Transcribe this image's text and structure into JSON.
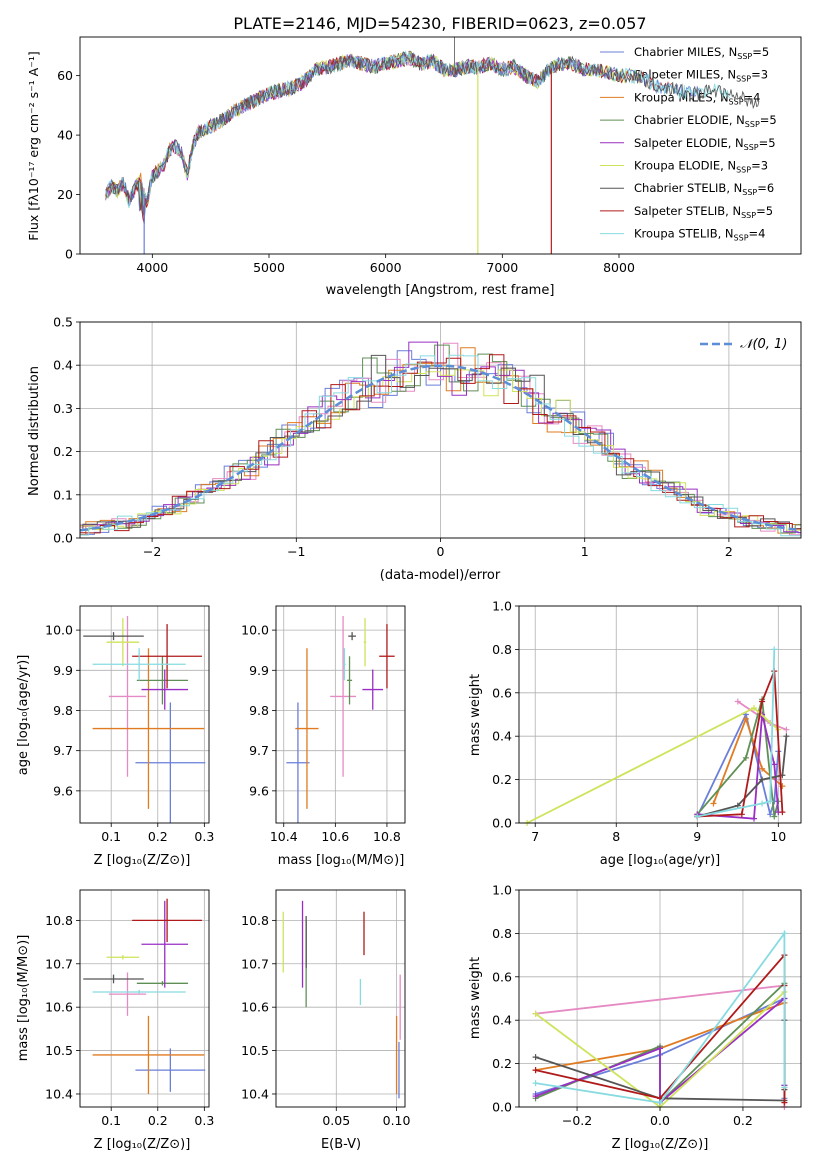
{
  "title": "PLATE=2146, MJD=54230, FIBERID=0623, z=0.057",
  "colors": {
    "s1": "#6a7fd9",
    "s2": "#e68ac4",
    "s3": "#e07b22",
    "s4": "#5f8f55",
    "s5": "#9a2ec4",
    "s6": "#cfe35a",
    "s7": "#555555",
    "s8": "#b01a1a",
    "s9": "#86dbe0",
    "normal": "#5b8ed6"
  },
  "legend": [
    {
      "label": "Chabrier MILES, N",
      "sub": "SSP",
      "eq": "=5",
      "color_key": "s1"
    },
    {
      "label": "Salpeter MILES, N",
      "sub": "SSP",
      "eq": "=3",
      "color_key": "s2"
    },
    {
      "label": "Kroupa MILES, N",
      "sub": "SSP",
      "eq": "=4",
      "color_key": "s3"
    },
    {
      "label": "Chabrier ELODIE, N",
      "sub": "SSP",
      "eq": "=5",
      "color_key": "s4"
    },
    {
      "label": "Salpeter ELODIE, N",
      "sub": "SSP",
      "eq": "=5",
      "color_key": "s5"
    },
    {
      "label": "Kroupa ELODIE, N",
      "sub": "SSP",
      "eq": "=3",
      "color_key": "s6"
    },
    {
      "label": "Chabrier STELIB, N",
      "sub": "SSP",
      "eq": "=6",
      "color_key": "s7"
    },
    {
      "label": "Salpeter STELIB, N",
      "sub": "SSP",
      "eq": "=5",
      "color_key": "s8"
    },
    {
      "label": "Kroupa STELIB, N",
      "sub": "SSP",
      "eq": "=4",
      "color_key": "s9"
    }
  ],
  "chart_data": [
    {
      "id": "spectrum",
      "type": "line",
      "xlabel": "wavelength [Angstrom, rest frame]",
      "ylabel": "Flux [fλ10⁻¹⁷ erg cm⁻² s⁻¹ A⁻¹]",
      "xlim": [
        3380,
        9560
      ],
      "ylim": [
        0,
        73
      ],
      "xticks": [
        4000,
        5000,
        6000,
        7000,
        8000
      ],
      "yticks": [
        0,
        20,
        40,
        60
      ],
      "xticklabels": [
        "4000",
        "5000",
        "6000",
        "7000",
        "8000"
      ],
      "yticklabels": [
        "0",
        "20",
        "40",
        "60"
      ],
      "x": [
        3600,
        3650,
        3700,
        3750,
        3800,
        3850,
        3900,
        3950,
        4000,
        4050,
        4100,
        4150,
        4200,
        4250,
        4300,
        4350,
        4400,
        4500,
        4600,
        4700,
        4800,
        4900,
        5000,
        5100,
        5200,
        5300,
        5400,
        5500,
        5600,
        5700,
        5800,
        5900,
        6000,
        6100,
        6200,
        6300,
        6400,
        6500,
        6600,
        6700,
        6800,
        6900,
        7000,
        7100,
        7200,
        7300,
        7400,
        7500,
        7600,
        7700,
        7800,
        7900,
        8000,
        8100,
        8200,
        8300,
        8400,
        8500,
        8600,
        8700,
        8800,
        8900,
        9000,
        9100,
        9200,
        9300,
        9400,
        9500
      ],
      "y": [
        20,
        23,
        21,
        24,
        18,
        22,
        25,
        17,
        26,
        28,
        30,
        35,
        36,
        34,
        27,
        37,
        41,
        43,
        45,
        48,
        50,
        52,
        54,
        55,
        56,
        58,
        62,
        63,
        64,
        65,
        64,
        63,
        64,
        65,
        66,
        64,
        65,
        62,
        62,
        63,
        63,
        64,
        62,
        63,
        60,
        58,
        62,
        64,
        64,
        62,
        62,
        61,
        60,
        60,
        59,
        57,
        56,
        55,
        54,
        54,
        55,
        54,
        53,
        52,
        51,
        51,
        50,
        50
      ],
      "dips": [
        {
          "x": 3930,
          "label": "Chabrier MILES"
        },
        {
          "x": 6790,
          "label": "Kroupa ELODIE"
        },
        {
          "x": 7420,
          "label": "Salpeter STELIB"
        }
      ]
    },
    {
      "id": "residuals",
      "type": "histogram",
      "xlabel": "(data-model)/error",
      "ylabel": "Normed distribution",
      "xlim": [
        -2.5,
        2.5
      ],
      "ylim": [
        0,
        0.5
      ],
      "xticks": [
        -2,
        -1,
        0,
        1,
        2
      ],
      "yticks": [
        0,
        0.1,
        0.2,
        0.3,
        0.4,
        0.5
      ],
      "xticklabels": [
        "−2",
        "−1",
        "0",
        "1",
        "2"
      ],
      "yticklabels": [
        "0.0",
        "0.1",
        "0.2",
        "0.3",
        "0.4",
        "0.5"
      ],
      "bin_width": 0.1,
      "normal_label": "𝒩(0, 1)"
    },
    {
      "id": "age_vs_Z",
      "type": "errorbar",
      "xlabel": "Z [log₁₀(Z/Z⊙)]",
      "ylabel": "age  [log₁₀(age/yr)]",
      "xlim": [
        0.033,
        0.31
      ],
      "ylim": [
        9.52,
        10.06
      ],
      "xticks": [
        0.1,
        0.2,
        0.3
      ],
      "yticks": [
        9.6,
        9.7,
        9.8,
        9.9,
        10.0
      ],
      "xticklabels": [
        "0.1",
        "0.2",
        "0.3"
      ],
      "yticklabels": [
        "9.6",
        "9.7",
        "9.8",
        "9.9",
        "10.0"
      ],
      "points": [
        {
          "s": "s1",
          "x": 0.227,
          "xerr": 0.075,
          "y": 9.67,
          "yerr": 0.15
        },
        {
          "s": "s2",
          "x": 0.135,
          "xerr": 0.04,
          "y": 9.835,
          "yerr": 0.2
        },
        {
          "s": "s3",
          "x": 0.18,
          "xerr": 0.12,
          "y": 9.755,
          "yerr": 0.2
        },
        {
          "s": "s4",
          "x": 0.21,
          "xerr": 0.055,
          "y": 9.875,
          "yerr": 0.06
        },
        {
          "s": "s5",
          "x": 0.215,
          "xerr": 0.05,
          "y": 9.852,
          "yerr": 0.05
        },
        {
          "s": "s6",
          "x": 0.125,
          "xerr": 0.035,
          "y": 9.97,
          "yerr": 0.06
        },
        {
          "s": "s7",
          "x": 0.105,
          "xerr": 0.065,
          "y": 9.985,
          "yerr": 0.01
        },
        {
          "s": "s8",
          "x": 0.22,
          "xerr": 0.075,
          "y": 9.935,
          "yerr": 0.08
        },
        {
          "s": "s9",
          "x": 0.16,
          "xerr": 0.1,
          "y": 9.915,
          "yerr": 0.04
        }
      ]
    },
    {
      "id": "age_vs_mass",
      "type": "errorbar",
      "xlabel": "mass [log₁₀(M/M⊙)]",
      "ylabel": "",
      "xlim": [
        10.37,
        10.87
      ],
      "ylim": [
        9.52,
        10.06
      ],
      "xticks": [
        10.4,
        10.6,
        10.8
      ],
      "yticks": [
        9.6,
        9.7,
        9.8,
        9.9,
        10.0
      ],
      "xticklabels": [
        "10.4",
        "10.6",
        "10.8"
      ],
      "yticklabels": [
        "9.6",
        "9.7",
        "9.8",
        "9.9",
        "10.0"
      ],
      "points": [
        {
          "s": "s1",
          "x": 10.455,
          "xerr": 0.045,
          "y": 9.67,
          "yerr": 0.15
        },
        {
          "s": "s2",
          "x": 10.63,
          "xerr": 0.05,
          "y": 9.835,
          "yerr": 0.2
        },
        {
          "s": "s3",
          "x": 10.49,
          "xerr": 0.045,
          "y": 9.755,
          "yerr": 0.2
        },
        {
          "s": "s4",
          "x": 10.655,
          "xerr": 0.01,
          "y": 9.875,
          "yerr": 0.06
        },
        {
          "s": "s5",
          "x": 10.745,
          "xerr": 0.04,
          "y": 9.852,
          "yerr": 0.05
        },
        {
          "s": "s6",
          "x": 10.715,
          "xerr": 0.005,
          "y": 9.97,
          "yerr": 0.06
        },
        {
          "s": "s7",
          "x": 10.665,
          "xerr": 0.015,
          "y": 9.985,
          "yerr": 0.01
        },
        {
          "s": "s8",
          "x": 10.8,
          "xerr": 0.03,
          "y": 9.935,
          "yerr": 0.08
        },
        {
          "s": "s9",
          "x": 10.635,
          "xerr": 0.005,
          "y": 9.915,
          "yerr": 0.04
        }
      ]
    },
    {
      "id": "mass_vs_Z",
      "type": "errorbar",
      "xlabel": "Z [log₁₀(Z/Z⊙)]",
      "ylabel": "mass [log₁₀(M/M⊙)]",
      "xlim": [
        0.033,
        0.31
      ],
      "ylim": [
        10.37,
        10.87
      ],
      "xticks": [
        0.1,
        0.2,
        0.3
      ],
      "yticks": [
        10.4,
        10.5,
        10.6,
        10.7,
        10.8
      ],
      "xticklabels": [
        "0.1",
        "0.2",
        "0.3"
      ],
      "yticklabels": [
        "10.4",
        "10.5",
        "10.6",
        "10.7",
        "10.8"
      ],
      "points": [
        {
          "s": "s1",
          "x": 0.227,
          "xerr": 0.075,
          "y": 10.455,
          "yerr": 0.05
        },
        {
          "s": "s2",
          "x": 0.135,
          "xerr": 0.04,
          "y": 10.63,
          "yerr": 0.05
        },
        {
          "s": "s3",
          "x": 0.18,
          "xerr": 0.12,
          "y": 10.49,
          "yerr": 0.09
        },
        {
          "s": "s4",
          "x": 0.21,
          "xerr": 0.055,
          "y": 10.655,
          "yerr": 0.005
        },
        {
          "s": "s5",
          "x": 0.215,
          "xerr": 0.05,
          "y": 10.745,
          "yerr": 0.1
        },
        {
          "s": "s6",
          "x": 0.125,
          "xerr": 0.035,
          "y": 10.715,
          "yerr": 0.005
        },
        {
          "s": "s7",
          "x": 0.105,
          "xerr": 0.065,
          "y": 10.665,
          "yerr": 0.01
        },
        {
          "s": "s8",
          "x": 0.22,
          "xerr": 0.075,
          "y": 10.8,
          "yerr": 0.05
        },
        {
          "s": "s9",
          "x": 0.16,
          "xerr": 0.1,
          "y": 10.635,
          "yerr": 0.005
        }
      ]
    },
    {
      "id": "mass_vs_EBV",
      "type": "errorbar",
      "xlabel": "E(B-V)",
      "ylabel": "",
      "xlim": [
        0.0,
        0.107
      ],
      "ylim": [
        10.37,
        10.87
      ],
      "xticks": [
        0.05,
        0.1
      ],
      "yticks": [
        10.4,
        10.5,
        10.6,
        10.7,
        10.8
      ],
      "xticklabels": [
        "0.05",
        "0.10"
      ],
      "yticklabels": [
        "10.4",
        "10.5",
        "10.6",
        "10.7",
        "10.8"
      ],
      "points": [
        {
          "s": "s1",
          "x": 0.102,
          "xerr": 0,
          "y": 10.455,
          "yerr": 0.065
        },
        {
          "s": "s2",
          "x": 0.103,
          "xerr": 0,
          "y": 10.6,
          "yerr": 0.075
        },
        {
          "s": "s3",
          "x": 0.1,
          "xerr": 0,
          "y": 10.49,
          "yerr": 0.09
        },
        {
          "s": "s4",
          "x": 0.025,
          "xerr": 0,
          "y": 10.7,
          "yerr": 0.1
        },
        {
          "s": "s5",
          "x": 0.022,
          "xerr": 0,
          "y": 10.745,
          "yerr": 0.1
        },
        {
          "s": "s6",
          "x": 0.006,
          "xerr": 0,
          "y": 10.75,
          "yerr": 0.07
        },
        {
          "s": "s7",
          "x": 0.025,
          "xerr": 0,
          "y": 10.75,
          "yerr": 0.06
        },
        {
          "s": "s8",
          "x": 0.073,
          "xerr": 0,
          "y": 10.77,
          "yerr": 0.05
        },
        {
          "s": "s9",
          "x": 0.07,
          "xerr": 0,
          "y": 10.635,
          "yerr": 0.03
        }
      ]
    },
    {
      "id": "weight_vs_age",
      "type": "line",
      "xlabel": "age  [log₁₀(age/yr)]",
      "ylabel": "mass weight",
      "xlim": [
        6.8,
        10.28
      ],
      "ylim": [
        0,
        1.0
      ],
      "xticks": [
        7,
        8,
        9,
        10
      ],
      "yticks": [
        0,
        0.2,
        0.4,
        0.6,
        0.8,
        1.0
      ],
      "xticklabels": [
        "7",
        "8",
        "9",
        "10"
      ],
      "yticklabels": [
        "0.0",
        "0.2",
        "0.4",
        "0.6",
        "0.8",
        "1.0"
      ],
      "series": [
        {
          "s": "s1",
          "x": [
            9.0,
            9.6,
            9.9,
            9.95,
            10.0
          ],
          "y": [
            0.03,
            0.5,
            0.04,
            0.1,
            0.33
          ]
        },
        {
          "s": "s2",
          "x": [
            9.5,
            9.9,
            10.1
          ],
          "y": [
            0.56,
            0.46,
            0.43
          ]
        },
        {
          "s": "s3",
          "x": [
            9.2,
            9.6,
            9.8,
            10.05
          ],
          "y": [
            0.09,
            0.48,
            0.25,
            0.17
          ]
        },
        {
          "s": "s4",
          "x": [
            9.0,
            9.6,
            9.8,
            9.95,
            10.0
          ],
          "y": [
            0.04,
            0.3,
            0.57,
            0.03,
            0.1
          ]
        },
        {
          "s": "s5",
          "x": [
            9.0,
            9.7,
            9.8,
            9.95,
            10.0
          ],
          "y": [
            0.04,
            0.02,
            0.5,
            0.27,
            0.05
          ]
        },
        {
          "s": "s6",
          "x": [
            6.9,
            9.7,
            10.0
          ],
          "y": [
            0.0,
            0.53,
            0.43
          ]
        },
        {
          "s": "s7",
          "x": [
            9.0,
            9.5,
            9.8,
            10.05,
            10.1
          ],
          "y": [
            0.03,
            0.08,
            0.2,
            0.22,
            0.4
          ]
        },
        {
          "s": "s8",
          "x": [
            9.0,
            9.55,
            9.8,
            9.95,
            10.05
          ],
          "y": [
            0.03,
            0.04,
            0.56,
            0.7,
            0.05
          ]
        },
        {
          "s": "s9",
          "x": [
            9.0,
            9.8,
            9.9,
            9.95
          ],
          "y": [
            0.03,
            0.09,
            0.1,
            0.8
          ]
        }
      ]
    },
    {
      "id": "weight_vs_Z",
      "type": "line",
      "xlabel": "Z [log₁₀(Z/Z⊙)]",
      "ylabel": "mass weight",
      "xlim": [
        -0.34,
        0.34
      ],
      "ylim": [
        0,
        1.0
      ],
      "xticks": [
        -0.2,
        0.0,
        0.2
      ],
      "yticks": [
        0,
        0.2,
        0.4,
        0.6,
        0.8,
        1.0
      ],
      "xticklabels": [
        "−0.2",
        "0.0",
        "0.2"
      ],
      "yticklabels": [
        "0.0",
        "0.2",
        "0.4",
        "0.6",
        "0.8",
        "1.0"
      ],
      "series": [
        {
          "s": "s1",
          "x": [
            -0.3,
            0.0,
            0.3,
            0.3,
            0.3
          ],
          "y": [
            0.06,
            0.24,
            0.5,
            0.1,
            0.04
          ]
        },
        {
          "s": "s2",
          "x": [
            -0.3,
            0.3,
            0.3
          ],
          "y": [
            0.43,
            0.56,
            0.0
          ]
        },
        {
          "s": "s3",
          "x": [
            -0.3,
            0.0,
            0.3,
            0.3
          ],
          "y": [
            0.17,
            0.27,
            0.48,
            0.09
          ]
        },
        {
          "s": "s4",
          "x": [
            -0.3,
            0.0,
            0.0,
            0.3,
            0.3
          ],
          "y": [
            0.04,
            0.28,
            0.02,
            0.57,
            0.03
          ]
        },
        {
          "s": "s5",
          "x": [
            -0.3,
            0.0,
            0.0,
            0.3,
            0.3
          ],
          "y": [
            0.05,
            0.27,
            0.02,
            0.5,
            0.1
          ]
        },
        {
          "s": "s6",
          "x": [
            -0.3,
            0.0,
            0.3
          ],
          "y": [
            0.43,
            0.0,
            0.53
          ]
        },
        {
          "s": "s7",
          "x": [
            -0.3,
            0.0,
            0.3,
            0.3,
            0.3
          ],
          "y": [
            0.23,
            0.04,
            0.03,
            0.4,
            0.08
          ]
        },
        {
          "s": "s8",
          "x": [
            -0.3,
            0.0,
            0.3,
            0.3,
            0.3
          ],
          "y": [
            0.17,
            0.04,
            0.7,
            0.56,
            0.02
          ]
        },
        {
          "s": "s9",
          "x": [
            -0.3,
            0.0,
            0.3,
            0.3
          ],
          "y": [
            0.11,
            0.02,
            0.8,
            0.09
          ]
        }
      ]
    }
  ]
}
